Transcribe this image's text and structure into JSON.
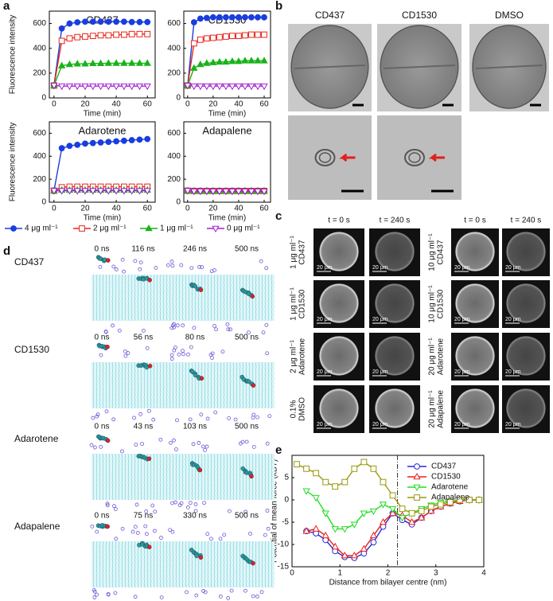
{
  "panel_labels": [
    "a",
    "b",
    "c",
    "d",
    "e"
  ],
  "chart_data": [
    {
      "type": "line",
      "title": "CD437",
      "xlabel": "Time (min)",
      "ylabel": "Fluorescence intensity",
      "x": [
        0,
        5,
        10,
        15,
        20,
        25,
        30,
        35,
        40,
        45,
        50,
        55,
        60
      ],
      "xlim": [
        -3,
        65
      ],
      "ylim": [
        0,
        700
      ],
      "xticks": [
        0,
        20,
        40,
        60
      ],
      "yticks": [
        0,
        200,
        400,
        600
      ],
      "legend": "bottom",
      "series": [
        {
          "name": "4 μg ml⁻¹",
          "color": "#1a3de0",
          "marker": "circle",
          "filled": true,
          "values": [
            100,
            560,
            600,
            610,
            615,
            615,
            615,
            615,
            615,
            615,
            612,
            612,
            612
          ]
        },
        {
          "name": "2 μg ml⁻¹",
          "color": "#e8261c",
          "marker": "square",
          "filled": false,
          "values": [
            100,
            460,
            480,
            490,
            495,
            500,
            505,
            505,
            510,
            510,
            515,
            515,
            515
          ]
        },
        {
          "name": "1 μg ml⁻¹",
          "color": "#19b319",
          "marker": "triangle",
          "filled": true,
          "values": [
            100,
            260,
            270,
            275,
            275,
            278,
            278,
            280,
            280,
            280,
            280,
            280,
            280
          ]
        },
        {
          "name": "0 μg ml⁻¹",
          "color": "#a020d0",
          "marker": "down",
          "filled": false,
          "values": [
            100,
            95,
            95,
            95,
            95,
            95,
            95,
            95,
            95,
            95,
            95,
            95,
            95
          ]
        }
      ]
    },
    {
      "type": "line",
      "title": "CD1530",
      "xlabel": "Time (min)",
      "x": [
        0,
        5,
        10,
        15,
        20,
        25,
        30,
        35,
        40,
        45,
        50,
        55,
        60
      ],
      "xlim": [
        -3,
        65
      ],
      "ylim": [
        0,
        700
      ],
      "xticks": [
        0,
        20,
        40,
        60
      ],
      "yticks": [
        0,
        200,
        400,
        600
      ],
      "series": [
        {
          "color": "#1a3de0",
          "marker": "circle",
          "filled": true,
          "values": [
            100,
            610,
            640,
            645,
            650,
            650,
            650,
            650,
            650,
            650,
            650,
            650,
            650
          ]
        },
        {
          "color": "#e8261c",
          "marker": "square",
          "filled": false,
          "values": [
            100,
            440,
            470,
            480,
            485,
            490,
            495,
            500,
            500,
            505,
            510,
            510,
            510
          ]
        },
        {
          "color": "#19b319",
          "marker": "triangle",
          "filled": true,
          "values": [
            100,
            240,
            270,
            280,
            285,
            290,
            290,
            295,
            295,
            300,
            300,
            300,
            300
          ]
        },
        {
          "color": "#a020d0",
          "marker": "down",
          "filled": false,
          "values": [
            100,
            95,
            95,
            95,
            95,
            95,
            95,
            95,
            95,
            95,
            95,
            95,
            95
          ]
        }
      ]
    },
    {
      "type": "line",
      "title": "Adarotene",
      "xlabel": "Time (min)",
      "ylabel": "Fluorescence intensity",
      "x": [
        0,
        5,
        10,
        15,
        20,
        25,
        30,
        35,
        40,
        45,
        50,
        55,
        60
      ],
      "xlim": [
        -3,
        65
      ],
      "ylim": [
        0,
        700
      ],
      "xticks": [
        0,
        20,
        40,
        60
      ],
      "yticks": [
        0,
        200,
        400,
        600
      ],
      "series": [
        {
          "color": "#1a3de0",
          "marker": "circle",
          "filled": true,
          "values": [
            100,
            470,
            490,
            500,
            510,
            515,
            520,
            525,
            530,
            535,
            540,
            545,
            550
          ]
        },
        {
          "color": "#e8261c",
          "marker": "square",
          "filled": false,
          "values": [
            100,
            130,
            135,
            135,
            135,
            135,
            135,
            135,
            135,
            135,
            135,
            135,
            135
          ]
        },
        {
          "color": "#19b319",
          "marker": "triangle",
          "filled": true,
          "values": [
            100,
            105,
            105,
            105,
            105,
            105,
            105,
            105,
            105,
            105,
            105,
            105,
            105
          ]
        },
        {
          "color": "#a020d0",
          "marker": "down",
          "filled": false,
          "values": [
            100,
            100,
            100,
            100,
            100,
            100,
            100,
            100,
            100,
            100,
            100,
            100,
            100
          ]
        }
      ]
    },
    {
      "type": "line",
      "title": "Adapalene",
      "xlabel": "Time (min)",
      "x": [
        0,
        5,
        10,
        15,
        20,
        25,
        30,
        35,
        40,
        45,
        50,
        55,
        60
      ],
      "xlim": [
        -3,
        65
      ],
      "ylim": [
        0,
        700
      ],
      "xticks": [
        0,
        20,
        40,
        60
      ],
      "yticks": [
        0,
        200,
        400,
        600
      ],
      "series": [
        {
          "color": "#1a3de0",
          "marker": "circle",
          "filled": true,
          "values": [
            100,
            100,
            100,
            100,
            100,
            100,
            100,
            100,
            100,
            100,
            100,
            100,
            100
          ]
        },
        {
          "color": "#e8261c",
          "marker": "square",
          "filled": false,
          "values": [
            100,
            98,
            98,
            98,
            98,
            98,
            98,
            98,
            98,
            98,
            98,
            98,
            98
          ]
        },
        {
          "color": "#19b319",
          "marker": "triangle",
          "filled": true,
          "values": [
            100,
            97,
            97,
            97,
            97,
            97,
            97,
            97,
            97,
            97,
            97,
            97,
            97
          ]
        },
        {
          "color": "#a020d0",
          "marker": "down",
          "filled": false,
          "values": [
            100,
            95,
            95,
            95,
            95,
            95,
            95,
            95,
            95,
            95,
            95,
            95,
            95
          ]
        }
      ]
    },
    {
      "type": "line",
      "xlabel": "Distance from bilayer centre (nm)",
      "ylabel": "Potential of mean force (kBT)",
      "x": [
        0.1,
        0.3,
        0.5,
        0.7,
        0.9,
        1.1,
        1.3,
        1.5,
        1.7,
        1.9,
        2.1,
        2.3,
        2.5,
        2.7,
        2.9,
        3.1,
        3.3,
        3.5,
        3.7,
        3.9
      ],
      "xlim": [
        0,
        4
      ],
      "ylim": [
        -15,
        10
      ],
      "xticks": [
        0,
        1,
        2,
        3,
        4
      ],
      "yticks": [
        -15,
        -10,
        -5,
        0,
        5
      ],
      "vline": 2.2,
      "legend": "upper right",
      "series": [
        {
          "name": "CD437",
          "color": "#2a2ad8",
          "marker": "circle",
          "filled": false,
          "values": [
            null,
            -7,
            -7.5,
            -9,
            -11.5,
            -12.8,
            -13,
            -12,
            -9.5,
            -6,
            -3,
            -4.5,
            -5.5,
            -4,
            -2.5,
            -1.5,
            -0.8,
            -0.3,
            0,
            0
          ]
        },
        {
          "name": "CD1530",
          "color": "#e82020",
          "marker": "triangle",
          "filled": false,
          "values": [
            null,
            -7,
            -6.5,
            -8,
            -10.5,
            -12.5,
            -12.5,
            -11,
            -8,
            -5,
            -3,
            -3.5,
            -5,
            -4,
            -2.5,
            -1.5,
            -0.8,
            -0.3,
            0,
            0
          ]
        },
        {
          "name": "Adarotene",
          "color": "#22dd22",
          "marker": "down",
          "filled": false,
          "values": [
            null,
            2,
            0.5,
            -3,
            -6.5,
            -6.5,
            -5.5,
            -3,
            -2.5,
            -1,
            -2,
            -4,
            -3,
            -2,
            -1.2,
            -0.6,
            -0.3,
            0,
            0,
            0
          ]
        },
        {
          "name": "Adapalene",
          "color": "#9a9a10",
          "marker": "square",
          "filled": false,
          "values": [
            8,
            7,
            6,
            4,
            3,
            4,
            7,
            8.5,
            7,
            4,
            1,
            -2,
            -3,
            -2.5,
            -1.5,
            -1,
            -0.5,
            0,
            0,
            0
          ]
        }
      ]
    }
  ],
  "panel_b": {
    "columns": [
      "CD437",
      "CD1530",
      "DMSO"
    ]
  },
  "panel_c": {
    "time_labels": [
      "t = 0 s",
      "t = 240 s"
    ],
    "scale_bar": "20 μm",
    "left_rows": [
      [
        "1 μg ml⁻¹",
        "CD437"
      ],
      [
        "1 μg ml⁻¹",
        "CD1530"
      ],
      [
        "2 μg ml⁻¹",
        "Adarotene"
      ],
      [
        "0.1%",
        "DMSO"
      ]
    ],
    "right_rows": [
      [
        "10 μg ml⁻¹",
        "CD437"
      ],
      [
        "10 μg ml⁻¹",
        "CD1530"
      ],
      [
        "20 μg ml⁻¹",
        "Adarotene"
      ],
      [
        "20 μg ml⁻¹",
        "Adapalene"
      ]
    ]
  },
  "panel_d": {
    "rows": [
      {
        "name": "CD437",
        "times": [
          "0 ns",
          "116 ns",
          "246 ns",
          "500 ns"
        ]
      },
      {
        "name": "CD1530",
        "times": [
          "0 ns",
          "56 ns",
          "80 ns",
          "500 ns"
        ]
      },
      {
        "name": "Adarotene",
        "times": [
          "0 ns",
          "43 ns",
          "103 ns",
          "500 ns"
        ]
      },
      {
        "name": "Adapalene",
        "times": [
          "0 ns",
          "75 ns",
          "330 ns",
          "500 ns"
        ]
      }
    ]
  }
}
